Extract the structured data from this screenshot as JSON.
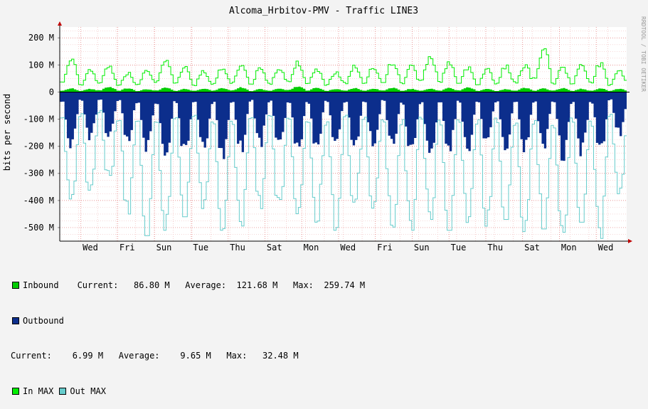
{
  "chart_data": {
    "type": "area",
    "title": "Alcoma_Hrbitov-PMV - Traffic LINE3",
    "ylabel": "bits per second",
    "watermark": "RRDTOOL / TOBI OETIKER",
    "ylim": [
      -550,
      240
    ],
    "yticks": [
      {
        "v": 200,
        "label": "200 M"
      },
      {
        "v": 100,
        "label": "100 M"
      },
      {
        "v": 0,
        "label": "0"
      },
      {
        "v": -100,
        "label": "-100 M"
      },
      {
        "v": -200,
        "label": "-200 M"
      },
      {
        "v": -300,
        "label": "-300 M"
      },
      {
        "v": -400,
        "label": "-400 M"
      },
      {
        "v": -500,
        "label": "-500 M"
      }
    ],
    "xlabels": [
      "Wed",
      "Fri",
      "Sun",
      "Tue",
      "Thu",
      "Sat",
      "Mon",
      "Wed",
      "Fri",
      "Sun",
      "Tue",
      "Thu",
      "Sat",
      "Mon",
      "Wed"
    ],
    "days": 30,
    "grid": true,
    "series": [
      {
        "name": "Inbound",
        "color": "#00cc00",
        "kind": "area"
      },
      {
        "name": "Outbound",
        "color": "#0c2e8c",
        "kind": "area",
        "negative": true
      },
      {
        "name": "In MAX",
        "color": "#00ee00",
        "kind": "line"
      },
      {
        "name": "Out MAX",
        "color": "#66cccc",
        "kind": "line",
        "negative": true
      }
    ],
    "daily_inbound_avg": [
      10,
      9,
      14,
      11,
      8,
      12,
      9,
      10,
      11,
      13,
      8,
      10,
      16,
      12,
      9,
      11,
      10,
      12,
      9,
      10,
      11,
      13,
      9,
      8,
      12,
      10,
      11,
      9,
      10,
      9
    ],
    "daily_in_max": [
      115,
      80,
      95,
      70,
      85,
      110,
      95,
      75,
      90,
      100,
      85,
      90,
      110,
      85,
      75,
      95,
      90,
      110,
      95,
      130,
      110,
      90,
      85,
      95,
      100,
      155,
      90,
      95,
      105,
      75
    ],
    "daily_outbound_peak": [
      200,
      175,
      165,
      185,
      210,
      235,
      215,
      210,
      225,
      210,
      190,
      205,
      215,
      210,
      195,
      190,
      205,
      190,
      225,
      235,
      215,
      200,
      185,
      205,
      205,
      195,
      230,
      220,
      210,
      150
    ],
    "daily_out_max": [
      430,
      375,
      325,
      450,
      530,
      510,
      460,
      430,
      510,
      500,
      430,
      425,
      460,
      480,
      510,
      430,
      440,
      500,
      510,
      470,
      510,
      485,
      495,
      470,
      515,
      505,
      550,
      480,
      540,
      390
    ]
  },
  "legend": {
    "inbound_label": "Inbound",
    "inbound_stats": "Current:   86.80 M   Average:  121.68 M   Max:  259.74 M",
    "outbound_label": "Outbound",
    "outbound_stats": "Current:    6.99 M   Average:    9.65 M   Max:   32.48 M",
    "in_max_label": "In MAX",
    "out_max_label": "Out MAX"
  }
}
